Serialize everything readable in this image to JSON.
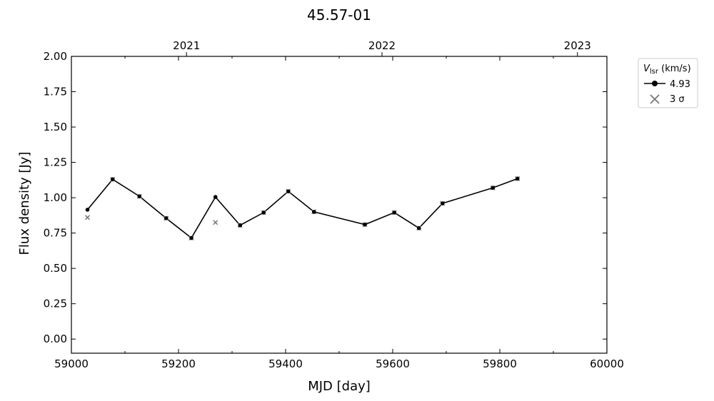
{
  "chart_data": {
    "type": "line",
    "title": "45.57-01",
    "xlabel": "MJD [day]",
    "ylabel": "Flux density [Jy]",
    "xlim": [
      59000,
      60000
    ],
    "ylim": [
      -0.1,
      2.0
    ],
    "xticks": [
      59000,
      59200,
      59400,
      59600,
      59800,
      60000
    ],
    "yticks": [
      0.0,
      0.25,
      0.5,
      0.75,
      1.0,
      1.25,
      1.5,
      1.75,
      2.0
    ],
    "ytick_labels": [
      "0.00",
      "0.25",
      "0.50",
      "0.75",
      "1.00",
      "1.25",
      "1.50",
      "1.75",
      "2.00"
    ],
    "top_axis": {
      "ticks": [
        59215,
        59580,
        59945
      ],
      "labels": [
        "2021",
        "2022",
        "2023"
      ]
    },
    "grid": false,
    "legend": {
      "placement": "outside-top-right",
      "title_main": "V",
      "title_sub": "lsr",
      "title_rest": " (km/s)",
      "entries": [
        "4.93",
        "3 σ"
      ]
    },
    "series": [
      {
        "name": "4.93",
        "color": "#000000",
        "x": [
          59030,
          59077,
          59127,
          59177,
          59224,
          59269,
          59315,
          59359,
          59405,
          59453,
          59548,
          59603,
          59649,
          59693,
          59787,
          59833
        ],
        "y": [
          0.915,
          1.13,
          1.01,
          0.855,
          0.715,
          1.005,
          0.805,
          0.895,
          1.045,
          0.9,
          0.81,
          0.895,
          0.785,
          0.96,
          1.07,
          1.135
        ]
      },
      {
        "name": "3 σ",
        "color": "#777777",
        "marker": "x",
        "x": [
          59030,
          59077,
          59127,
          59177,
          59224,
          59269,
          59315,
          59359,
          59405,
          59453,
          59548,
          59603,
          59649,
          59693,
          59787,
          59833
        ],
        "y": [
          0.86,
          1.13,
          1.01,
          0.855,
          0.715,
          0.825,
          0.805,
          0.895,
          1.045,
          0.9,
          0.81,
          0.895,
          0.785,
          0.96,
          1.07,
          1.135
        ]
      }
    ]
  }
}
